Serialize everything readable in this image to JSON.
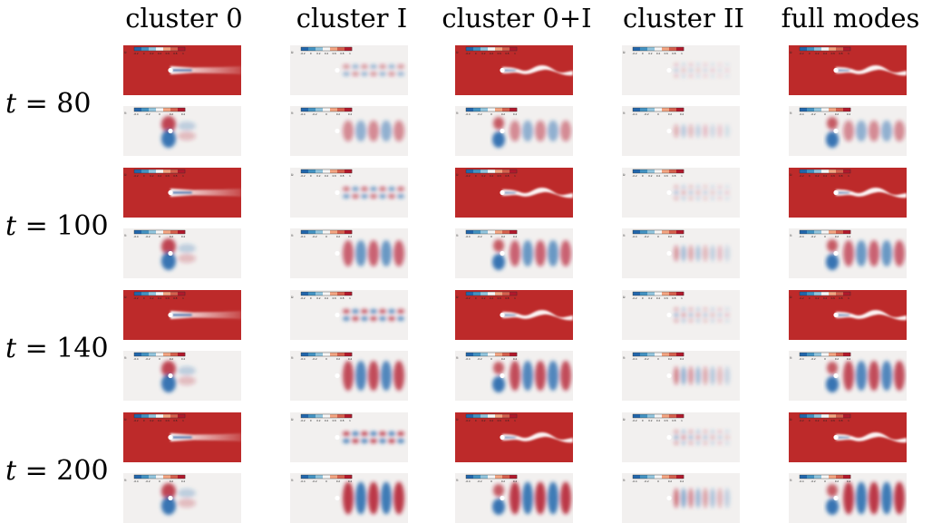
{
  "columns": [
    {
      "id": "c0",
      "label": "cluster 0"
    },
    {
      "id": "c1",
      "label": "cluster I"
    },
    {
      "id": "c01",
      "label": "cluster 0+I"
    },
    {
      "id": "c2",
      "label": "cluster II"
    },
    {
      "id": "full",
      "label": "full modes"
    }
  ],
  "rows": [
    {
      "id": "t80",
      "var": "t",
      "eq": " = ",
      "value": "80"
    },
    {
      "id": "t100",
      "var": "t",
      "eq": " = ",
      "value": "100"
    },
    {
      "id": "t140",
      "var": "t",
      "eq": " = ",
      "value": "140"
    },
    {
      "id": "t200",
      "var": "t",
      "eq": " = ",
      "value": "200"
    }
  ],
  "fields": [
    {
      "id": "u",
      "colorbar_label": "U:",
      "ticks": [
        "-0.2",
        "0",
        "0.2",
        "0.4",
        "0.6",
        "0.8",
        "1"
      ]
    },
    {
      "id": "v",
      "colorbar_label": "V:",
      "ticks": [
        "-0.4",
        "-0.2",
        "0",
        "0.2",
        "0.4"
      ]
    }
  ],
  "colors": {
    "red": "#b2182b",
    "blue": "#2166ac",
    "neutral": "#f2f0ef",
    "free_stream": "#bd2a2a"
  }
}
